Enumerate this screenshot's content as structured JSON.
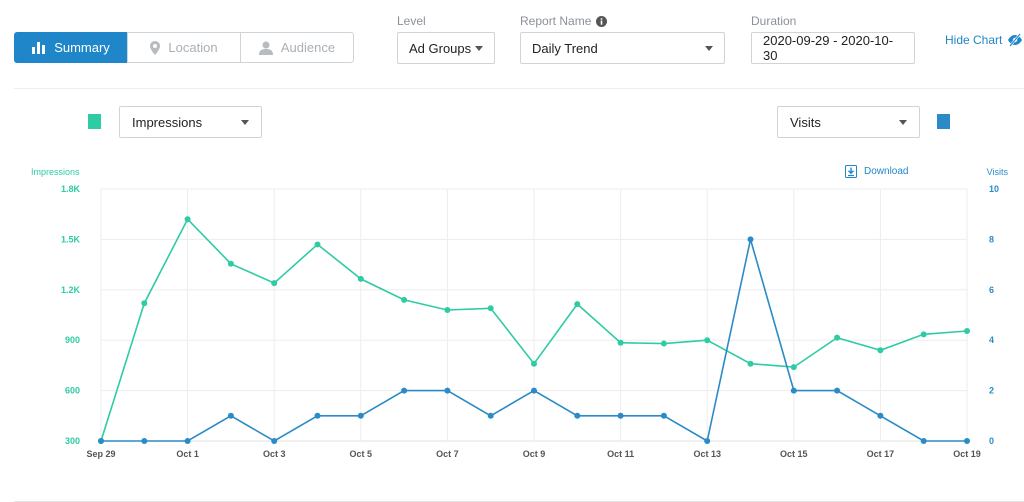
{
  "tabs": [
    {
      "label": "Summary",
      "icon": "bar-chart-icon",
      "active": true
    },
    {
      "label": "Location",
      "icon": "location-pin-icon",
      "active": false
    },
    {
      "label": "Audience",
      "icon": "person-icon",
      "active": false
    }
  ],
  "filters": {
    "level": {
      "label": "Level",
      "value": "Ad Groups"
    },
    "report_name": {
      "label": "Report Name",
      "value": "Daily Trend",
      "info_icon": "info-icon"
    },
    "duration": {
      "label": "Duration",
      "value": "2020-09-29 - 2020-10-30"
    }
  },
  "hide_chart_label": "Hide Chart",
  "download_label": "Download",
  "left_metric": "Impressions",
  "right_metric": "Visits",
  "colors": {
    "accent": "#1f86c9",
    "impressions": "#2ecba5",
    "visits": "#2a8bc6"
  },
  "chart_data": {
    "type": "line",
    "x": [
      "Sep 29",
      "Sep 30",
      "Oct 1",
      "Oct 2",
      "Oct 3",
      "Oct 4",
      "Oct 5",
      "Oct 6",
      "Oct 7",
      "Oct 8",
      "Oct 9",
      "Oct 10",
      "Oct 11",
      "Oct 12",
      "Oct 13",
      "Oct 14",
      "Oct 15",
      "Oct 16",
      "Oct 17",
      "Oct 18",
      "Oct 19"
    ],
    "x_tick_labels": [
      "Sep 29",
      "Oct 1",
      "Oct 3",
      "Oct 5",
      "Oct 7",
      "Oct 9",
      "Oct 11",
      "Oct 13",
      "Oct 15",
      "Oct 17",
      "Oct 19"
    ],
    "y_left": {
      "label": "Impressions",
      "ticks": [
        "300",
        "600",
        "900",
        "1.2K",
        "1.5K",
        "1.8K"
      ],
      "range": [
        300,
        1800
      ]
    },
    "y_right": {
      "label": "Visits",
      "ticks": [
        "0",
        "2",
        "4",
        "6",
        "8",
        "10"
      ],
      "range": [
        0,
        10
      ]
    },
    "grid": true,
    "series": [
      {
        "name": "Impressions",
        "axis": "left",
        "values": [
          300,
          1120,
          1620,
          1355,
          1240,
          1470,
          1265,
          1140,
          1080,
          1090,
          760,
          1115,
          885,
          880,
          900,
          760,
          740,
          915,
          840,
          935,
          955
        ]
      },
      {
        "name": "Visits",
        "axis": "right",
        "values": [
          0,
          0,
          0,
          1,
          0,
          1,
          1,
          2,
          2,
          1,
          2,
          1,
          1,
          1,
          0,
          8,
          2,
          2,
          1,
          0,
          0
        ]
      }
    ]
  }
}
